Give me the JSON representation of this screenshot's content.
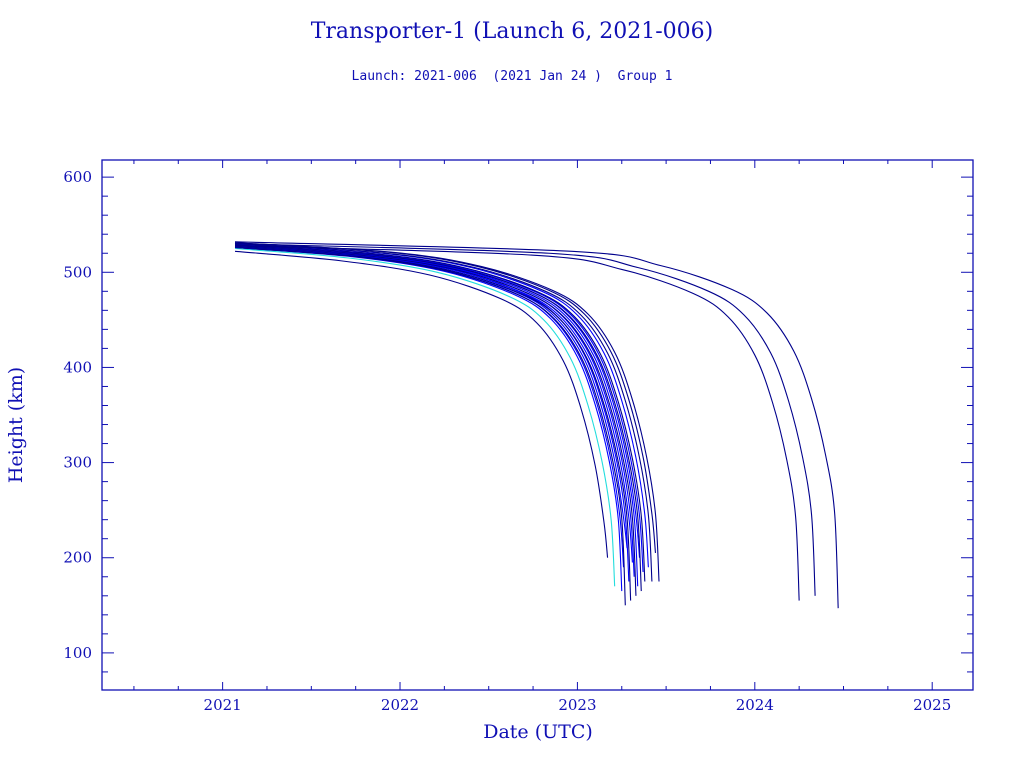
{
  "chart_data": {
    "type": "line",
    "title": "Transporter-1 (Launch 6, 2021-006)",
    "subtitle": "Launch: 2021-006  (2021 Jan 24 )  Group 1",
    "xlabel": "Date (UTC)",
    "ylabel": "Height (km)",
    "xlim": [
      2020.32,
      2025.23
    ],
    "ylim": [
      61,
      618
    ],
    "xticks": [
      2021,
      2022,
      2023,
      2024,
      2025
    ],
    "xtick_labels": [
      "2021",
      "2022",
      "2023",
      "2024",
      "2025"
    ],
    "yticks": [
      100,
      200,
      300,
      400,
      500,
      600
    ],
    "ytick_labels": [
      "100",
      "200",
      "300",
      "400",
      "500",
      "600"
    ],
    "grid": false,
    "colors": {
      "axis": "#1010b4",
      "blue": "#0000ff",
      "navy": "#00008c",
      "cyan": "#22dddd"
    },
    "launch_date": 2021.07,
    "decay_profile": {
      "years_before_decay": [
        1.5,
        1.0,
        0.6,
        0.4,
        0.25,
        0.15,
        0.07,
        0.02
      ],
      "height_drop_km": [
        10,
        25,
        50,
        75,
        115,
        165,
        225,
        285
      ]
    },
    "series": [
      {
        "start": 522,
        "decay": 2023.17,
        "final": 200,
        "color": "navy"
      },
      {
        "start": 525,
        "decay": 2023.21,
        "final": 170,
        "color": "cyan"
      },
      {
        "start": 526,
        "decay": 2023.25,
        "final": 165,
        "color": "blue"
      },
      {
        "start": 527,
        "decay": 2023.26,
        "final": 190,
        "color": "blue"
      },
      {
        "start": 526,
        "decay": 2023.27,
        "final": 150,
        "color": "navy"
      },
      {
        "start": 527,
        "decay": 2023.28,
        "final": 210,
        "color": "blue"
      },
      {
        "start": 528,
        "decay": 2023.29,
        "final": 175,
        "color": "blue"
      },
      {
        "start": 526,
        "decay": 2023.3,
        "final": 155,
        "color": "navy"
      },
      {
        "start": 527,
        "decay": 2023.31,
        "final": 195,
        "color": "blue"
      },
      {
        "start": 528,
        "decay": 2023.32,
        "final": 180,
        "color": "blue"
      },
      {
        "start": 527,
        "decay": 2023.33,
        "final": 160,
        "color": "navy"
      },
      {
        "start": 528,
        "decay": 2023.34,
        "final": 170,
        "color": "blue"
      },
      {
        "start": 529,
        "decay": 2023.35,
        "final": 200,
        "color": "blue"
      },
      {
        "start": 528,
        "decay": 2023.36,
        "final": 165,
        "color": "navy"
      },
      {
        "start": 529,
        "decay": 2023.37,
        "final": 185,
        "color": "blue"
      },
      {
        "start": 529,
        "decay": 2023.38,
        "final": 175,
        "color": "navy"
      },
      {
        "start": 530,
        "decay": 2023.4,
        "final": 190,
        "color": "blue"
      },
      {
        "start": 530,
        "decay": 2023.42,
        "final": 175,
        "color": "navy"
      },
      {
        "start": 531,
        "decay": 2023.44,
        "final": 205,
        "color": "navy"
      },
      {
        "start": 531,
        "decay": 2023.46,
        "final": 175,
        "color": "navy"
      },
      {
        "start": 528,
        "decay": 2024.25,
        "final": 155,
        "color": "navy"
      },
      {
        "start": 530,
        "decay": 2024.34,
        "final": 160,
        "color": "navy"
      },
      {
        "start": 532,
        "decay": 2024.47,
        "final": 147,
        "color": "navy"
      }
    ]
  }
}
